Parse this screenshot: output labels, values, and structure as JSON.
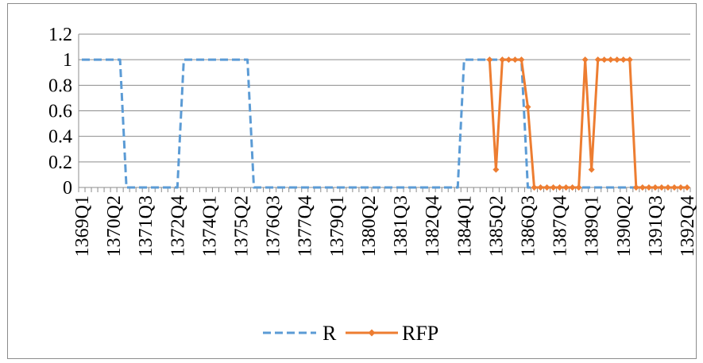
{
  "chart_data": {
    "type": "line",
    "title": "",
    "xlabel": "",
    "ylabel": "",
    "ylim": [
      0,
      1.2
    ],
    "yticks": [
      "0",
      "0.2",
      "0.4",
      "0.6",
      "0.8",
      "1",
      "1.2"
    ],
    "grid": "horizontal",
    "legend_position": "bottom",
    "x_tick_labels": [
      "1369Q1",
      "1370Q2",
      "1371Q3",
      "1372Q4",
      "1374Q1",
      "1375Q2",
      "1376Q3",
      "1377Q4",
      "1379Q1",
      "1380Q2",
      "1381Q3",
      "1382Q4",
      "1384Q1",
      "1385Q2",
      "1386Q3",
      "1387Q4",
      "1389Q1",
      "1390Q2",
      "1391Q3",
      "1392Q4"
    ],
    "series": [
      {
        "name": "R",
        "color": "#5b9bd5",
        "style": "dashed",
        "start_quarter": "1369Q1",
        "values": [
          1,
          1,
          1,
          1,
          1,
          1,
          1,
          0,
          0,
          0,
          0,
          0,
          0,
          0,
          0,
          0,
          1,
          1,
          1,
          1,
          1,
          1,
          1,
          1,
          1,
          1,
          1,
          0,
          0,
          0,
          0,
          0,
          0,
          0,
          0,
          0,
          0,
          0,
          0,
          0,
          0,
          0,
          0,
          0,
          0,
          0,
          0,
          0,
          0,
          0,
          0,
          0,
          0,
          0,
          0,
          0,
          0,
          0,
          0,
          0,
          1,
          1,
          1,
          1,
          1,
          1,
          1,
          1,
          1,
          1,
          0,
          0,
          0,
          0,
          0,
          0,
          0,
          0,
          0,
          0,
          0,
          0,
          0,
          0,
          0,
          0,
          0,
          0,
          0,
          0,
          0,
          0,
          0,
          0,
          0,
          0
        ]
      },
      {
        "name": "RFP",
        "color": "#ed7d31",
        "style": "solid-marker",
        "start_quarter": "1385Q1",
        "values": [
          1,
          0.14,
          1,
          1,
          1,
          1,
          0.63,
          0,
          0,
          0,
          0,
          0,
          0,
          0,
          0,
          1,
          0.14,
          1,
          1,
          1,
          1,
          1,
          1,
          0,
          0,
          0,
          0,
          0,
          0,
          0,
          0,
          0
        ]
      }
    ]
  }
}
